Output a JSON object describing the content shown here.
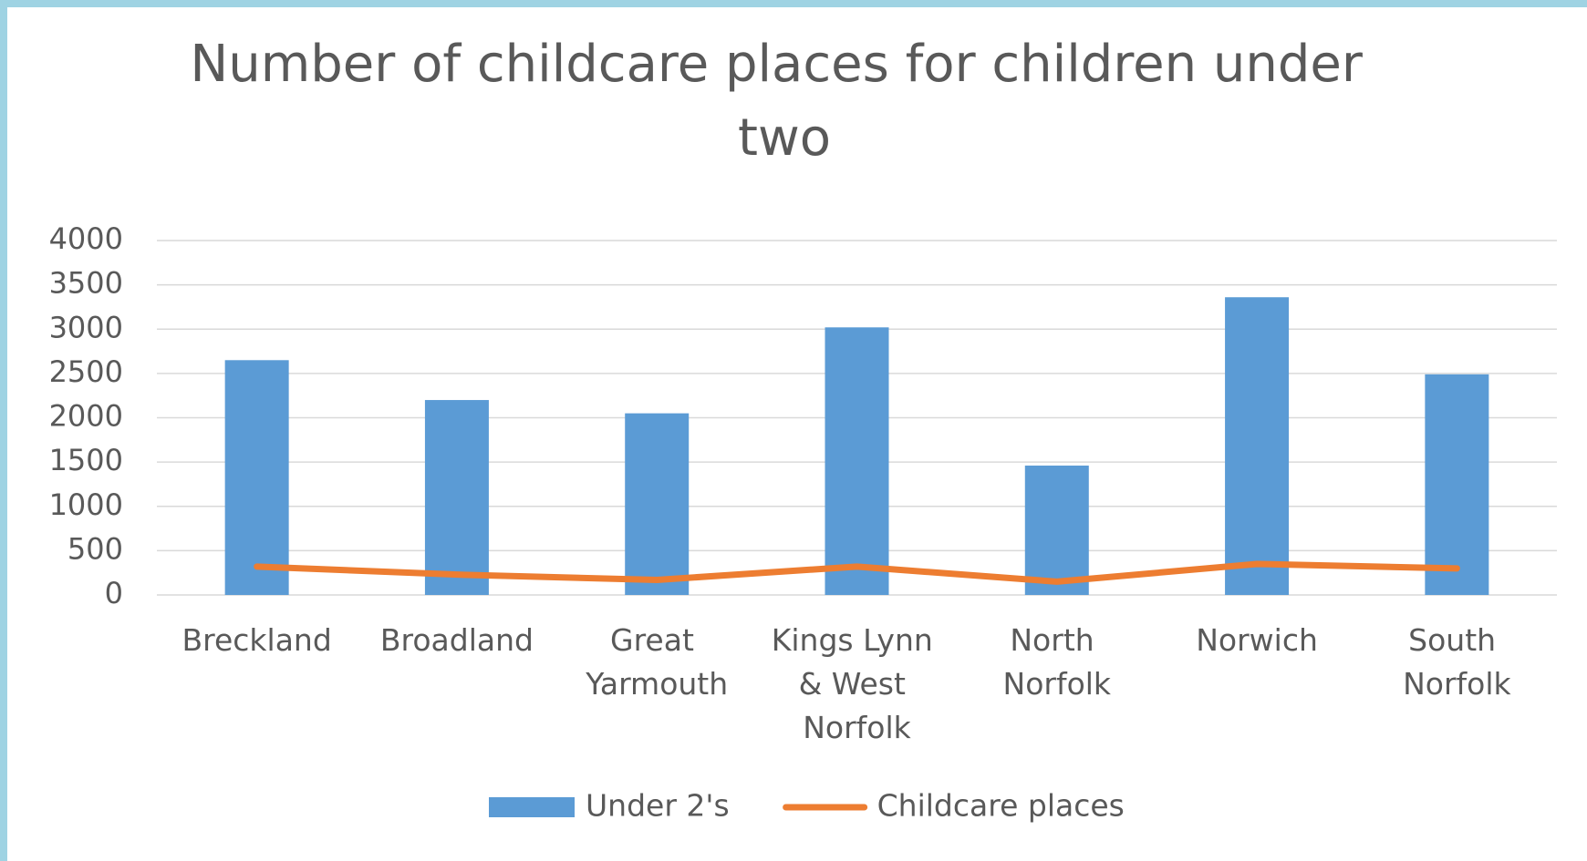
{
  "chart_data": {
    "type": "bar",
    "title": "Number of childcare places for children under two",
    "categories": [
      "Breckland",
      "Broadland",
      "Great Yarmouth",
      "Kings Lynn & West Norfolk",
      "North Norfolk",
      "Norwich",
      "South Norfolk"
    ],
    "series": [
      {
        "name": "Under 2's",
        "type": "bar",
        "color": "#5b9bd5",
        "values": [
          2650,
          2200,
          2050,
          3020,
          1460,
          3360,
          2490
        ]
      },
      {
        "name": "Childcare places",
        "type": "line",
        "color": "#ed7d31",
        "values": [
          320,
          230,
          170,
          320,
          150,
          350,
          300
        ]
      }
    ],
    "ylim": [
      0,
      4000
    ],
    "yticks": [
      0,
      500,
      1000,
      1500,
      2000,
      2500,
      3000,
      3500,
      4000
    ],
    "grid": true,
    "legend": "bottom"
  }
}
